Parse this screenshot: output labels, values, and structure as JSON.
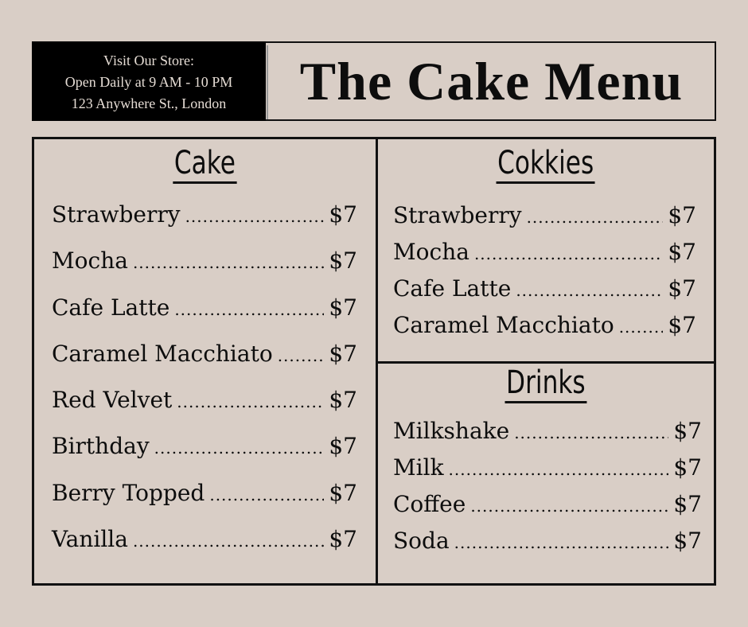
{
  "store_info": {
    "line1": "Visit Our Store:",
    "line2": "Open Daily at 9 AM - 10 PM",
    "line3": "123 Anywhere St., London"
  },
  "title": "The Cake Menu",
  "colors": {
    "background": "#d9cec6",
    "ink": "#0d0d0d",
    "banner": "#000000"
  },
  "sections": {
    "cake": {
      "heading": "Cake",
      "items": [
        {
          "name": "Strawberry",
          "price": "$7"
        },
        {
          "name": "Mocha",
          "price": "$7"
        },
        {
          "name": "Cafe Latte",
          "price": "$7"
        },
        {
          "name": "Caramel Macchiato",
          "price": "$7"
        },
        {
          "name": "Red Velvet",
          "price": "$7"
        },
        {
          "name": "Birthday",
          "price": "$7"
        },
        {
          "name": "Berry Topped",
          "price": "$7"
        },
        {
          "name": "Vanilla",
          "price": "$7"
        }
      ]
    },
    "cookies": {
      "heading": "Cokkies",
      "items": [
        {
          "name": "Strawberry",
          "price": "$7"
        },
        {
          "name": "Mocha",
          "price": "$7"
        },
        {
          "name": "Cafe Latte",
          "price": "$7"
        },
        {
          "name": "Caramel Macchiato",
          "price": "$7"
        }
      ]
    },
    "drinks": {
      "heading": "Drinks",
      "items": [
        {
          "name": "Milkshake",
          "price": "$7"
        },
        {
          "name": "Milk",
          "price": "$7"
        },
        {
          "name": "Coffee",
          "price": "$7"
        },
        {
          "name": "Soda",
          "price": "$7"
        }
      ]
    }
  }
}
